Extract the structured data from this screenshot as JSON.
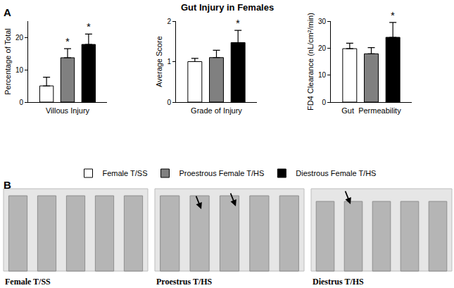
{
  "title": "Gut Injury in Females",
  "panel_labels": [
    "A",
    "B"
  ],
  "chart_data": [
    {
      "type": "bar",
      "x_label": "Villous Injury",
      "y_label": "Percentage of Total",
      "categories": [
        null
      ],
      "legend": "bottom",
      "grid": false,
      "ylim": [
        0,
        25
      ],
      "yticks": [
        0,
        10,
        20
      ],
      "series": [
        {
          "name": "Female T/SS",
          "color": "#ffffff",
          "values": [
            5
          ],
          "error": [
            2.7
          ]
        },
        {
          "name": "Proestrous Female T/HS",
          "color": "#808080",
          "values": [
            13.7
          ],
          "error": [
            2.8
          ],
          "annotation": "*"
        },
        {
          "name": "Diestrous Female T/HS",
          "color": "#000000",
          "values": [
            17.8
          ],
          "error": [
            3.2
          ],
          "annotation": "*"
        }
      ]
    },
    {
      "type": "bar",
      "x_label": "Grade of Injury",
      "y_label": "Average Score",
      "categories": [
        null
      ],
      "grid": false,
      "ylim": [
        0,
        2
      ],
      "yticks": [
        0,
        1,
        2
      ],
      "series": [
        {
          "name": "Female T/SS",
          "color": "#ffffff",
          "values": [
            1.0
          ],
          "error": [
            0.08
          ]
        },
        {
          "name": "Proestrous Female T/HS",
          "color": "#808080",
          "values": [
            1.1
          ],
          "error": [
            0.18
          ]
        },
        {
          "name": "Diestrous Female T/HS",
          "color": "#000000",
          "values": [
            1.47
          ],
          "error": [
            0.3
          ],
          "annotation": "*"
        }
      ]
    },
    {
      "type": "bar",
      "x_label": "Gut  Permeability",
      "y_label": "FD4 Clearance (nL/cm²/min)",
      "categories": [
        null
      ],
      "grid": false,
      "ylim": [
        0,
        30
      ],
      "yticks": [
        0,
        10,
        20,
        30
      ],
      "series": [
        {
          "name": "Female T/SS",
          "color": "#ffffff",
          "values": [
            19.8
          ],
          "error": [
            2.0
          ]
        },
        {
          "name": "Proestrous Female T/HS",
          "color": "#808080",
          "values": [
            17.9
          ],
          "error": [
            2.3
          ]
        },
        {
          "name": "Diestrous Female T/HS",
          "color": "#000000",
          "values": [
            24
          ],
          "error": [
            5.5
          ],
          "annotation": "*"
        }
      ]
    }
  ],
  "images": [
    {
      "caption": "Female T/SS"
    },
    {
      "caption": "Proestrus T/HS"
    },
    {
      "caption": "Diestrus T/HS"
    }
  ]
}
